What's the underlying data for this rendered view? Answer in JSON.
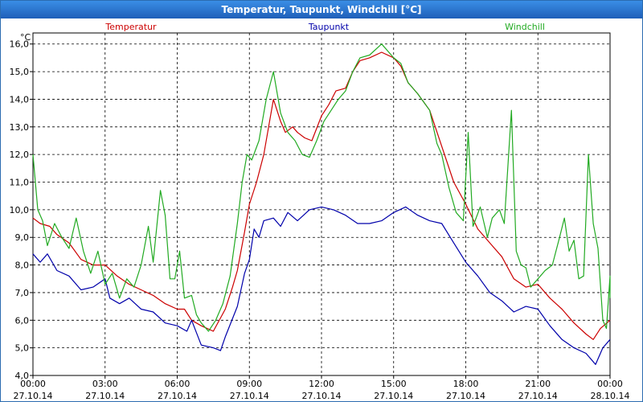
{
  "window": {
    "title": "Temperatur, Taupunkt, Windchill [°C]"
  },
  "chart_data": {
    "type": "line",
    "title": "Temperatur, Taupunkt, Windchill [°C]",
    "ylabel": "°C",
    "ylim": [
      4.0,
      16.4
    ],
    "xlim": [
      0,
      24
    ],
    "grid": true,
    "legend": "top",
    "y_ticks": [
      "4,0",
      "5,0",
      "6,0",
      "7,0",
      "8,0",
      "9,0",
      "10,0",
      "11,0",
      "12,0",
      "13,0",
      "14,0",
      "15,0",
      "16,0"
    ],
    "x_ticks": [
      {
        "time": "00:00",
        "date": "27.10.14"
      },
      {
        "time": "03:00",
        "date": "27.10.14"
      },
      {
        "time": "06:00",
        "date": "27.10.14"
      },
      {
        "time": "09:00",
        "date": "27.10.14"
      },
      {
        "time": "12:00",
        "date": "27.10.14"
      },
      {
        "time": "15:00",
        "date": "27.10.14"
      },
      {
        "time": "18:00",
        "date": "27.10.14"
      },
      {
        "time": "21:00",
        "date": "27.10.14"
      },
      {
        "time": "00:00",
        "date": "28.10.14"
      }
    ],
    "series": [
      {
        "name": "Temperatur",
        "color": "#cc0000",
        "points": [
          [
            0,
            9.7
          ],
          [
            0.3,
            9.5
          ],
          [
            0.7,
            9.4
          ],
          [
            1,
            9.1
          ],
          [
            1.5,
            8.8
          ],
          [
            2,
            8.2
          ],
          [
            2.5,
            8.0
          ],
          [
            3,
            8.0
          ],
          [
            3.5,
            7.6
          ],
          [
            4,
            7.3
          ],
          [
            4.5,
            7.1
          ],
          [
            5,
            6.9
          ],
          [
            5.5,
            6.6
          ],
          [
            6,
            6.4
          ],
          [
            6.3,
            6.4
          ],
          [
            6.6,
            6.0
          ],
          [
            7,
            5.8
          ],
          [
            7.5,
            5.6
          ],
          [
            8,
            6.4
          ],
          [
            8.3,
            7.2
          ],
          [
            8.5,
            7.8
          ],
          [
            8.8,
            9.2
          ],
          [
            9,
            10.2
          ],
          [
            9.3,
            11.0
          ],
          [
            9.6,
            12.0
          ],
          [
            9.8,
            13.0
          ],
          [
            10,
            14.0
          ],
          [
            10.3,
            13.2
          ],
          [
            10.5,
            12.8
          ],
          [
            10.8,
            13.0
          ],
          [
            11,
            12.8
          ],
          [
            11.3,
            12.6
          ],
          [
            11.6,
            12.5
          ],
          [
            12,
            13.4
          ],
          [
            12.3,
            13.8
          ],
          [
            12.6,
            14.3
          ],
          [
            13,
            14.4
          ],
          [
            13.3,
            15.0
          ],
          [
            13.6,
            15.4
          ],
          [
            14,
            15.5
          ],
          [
            14.5,
            15.7
          ],
          [
            15,
            15.5
          ],
          [
            15.3,
            15.2
          ],
          [
            15.6,
            14.6
          ],
          [
            16,
            14.2
          ],
          [
            16.5,
            13.6
          ],
          [
            17,
            12.3
          ],
          [
            17.5,
            11.0
          ],
          [
            18,
            10.2
          ],
          [
            18.5,
            9.3
          ],
          [
            19,
            8.8
          ],
          [
            19.5,
            8.3
          ],
          [
            20,
            7.5
          ],
          [
            20.5,
            7.2
          ],
          [
            21,
            7.3
          ],
          [
            21.5,
            6.8
          ],
          [
            22,
            6.4
          ],
          [
            22.5,
            5.9
          ],
          [
            23,
            5.5
          ],
          [
            23.3,
            5.3
          ],
          [
            23.6,
            5.7
          ],
          [
            24,
            6.0
          ]
        ]
      },
      {
        "name": "Taupunkt",
        "color": "#0000aa",
        "points": [
          [
            0,
            8.4
          ],
          [
            0.3,
            8.1
          ],
          [
            0.6,
            8.4
          ],
          [
            1,
            7.8
          ],
          [
            1.5,
            7.6
          ],
          [
            2,
            7.1
          ],
          [
            2.5,
            7.2
          ],
          [
            3,
            7.5
          ],
          [
            3.2,
            6.8
          ],
          [
            3.6,
            6.6
          ],
          [
            4,
            6.8
          ],
          [
            4.5,
            6.4
          ],
          [
            5,
            6.3
          ],
          [
            5.5,
            5.9
          ],
          [
            6,
            5.8
          ],
          [
            6.4,
            5.6
          ],
          [
            6.6,
            6.0
          ],
          [
            7,
            5.1
          ],
          [
            7.5,
            5.0
          ],
          [
            7.8,
            4.9
          ],
          [
            8,
            5.4
          ],
          [
            8.5,
            6.5
          ],
          [
            8.8,
            7.7
          ],
          [
            9,
            8.2
          ],
          [
            9.2,
            9.3
          ],
          [
            9.4,
            9.0
          ],
          [
            9.6,
            9.6
          ],
          [
            10,
            9.7
          ],
          [
            10.3,
            9.4
          ],
          [
            10.6,
            9.9
          ],
          [
            11,
            9.6
          ],
          [
            11.5,
            10.0
          ],
          [
            12,
            10.1
          ],
          [
            12.5,
            10.0
          ],
          [
            13,
            9.8
          ],
          [
            13.5,
            9.5
          ],
          [
            14,
            9.5
          ],
          [
            14.5,
            9.6
          ],
          [
            15,
            9.9
          ],
          [
            15.5,
            10.1
          ],
          [
            16,
            9.8
          ],
          [
            16.5,
            9.6
          ],
          [
            17,
            9.5
          ],
          [
            17.5,
            8.8
          ],
          [
            18,
            8.1
          ],
          [
            18.5,
            7.6
          ],
          [
            19,
            7.0
          ],
          [
            19.5,
            6.7
          ],
          [
            20,
            6.3
          ],
          [
            20.5,
            6.5
          ],
          [
            21,
            6.4
          ],
          [
            21.5,
            5.8
          ],
          [
            22,
            5.3
          ],
          [
            22.5,
            5.0
          ],
          [
            23,
            4.8
          ],
          [
            23.4,
            4.4
          ],
          [
            23.7,
            5.0
          ],
          [
            24,
            5.3
          ]
        ]
      },
      {
        "name": "Windchill",
        "color": "#22aa22",
        "points": [
          [
            0,
            12.0
          ],
          [
            0.2,
            10.0
          ],
          [
            0.4,
            9.6
          ],
          [
            0.6,
            8.7
          ],
          [
            0.9,
            9.5
          ],
          [
            1.2,
            9.0
          ],
          [
            1.5,
            8.6
          ],
          [
            1.8,
            9.7
          ],
          [
            2.1,
            8.5
          ],
          [
            2.4,
            7.7
          ],
          [
            2.7,
            8.5
          ],
          [
            3,
            7.3
          ],
          [
            3.3,
            7.7
          ],
          [
            3.6,
            6.8
          ],
          [
            3.9,
            7.5
          ],
          [
            4.2,
            7.2
          ],
          [
            4.5,
            8.0
          ],
          [
            4.8,
            9.4
          ],
          [
            5,
            8.1
          ],
          [
            5.3,
            10.7
          ],
          [
            5.5,
            9.8
          ],
          [
            5.7,
            7.5
          ],
          [
            5.9,
            7.5
          ],
          [
            6.1,
            8.5
          ],
          [
            6.3,
            6.8
          ],
          [
            6.6,
            6.9
          ],
          [
            6.8,
            6.2
          ],
          [
            7,
            5.9
          ],
          [
            7.3,
            5.6
          ],
          [
            7.6,
            6.0
          ],
          [
            7.9,
            6.6
          ],
          [
            8.2,
            7.6
          ],
          [
            8.5,
            9.5
          ],
          [
            8.7,
            11.0
          ],
          [
            8.9,
            12.0
          ],
          [
            9.1,
            11.8
          ],
          [
            9.4,
            12.5
          ],
          [
            9.7,
            14.0
          ],
          [
            10,
            15.0
          ],
          [
            10.3,
            13.5
          ],
          [
            10.6,
            12.8
          ],
          [
            10.9,
            12.5
          ],
          [
            11.2,
            12.0
          ],
          [
            11.5,
            11.9
          ],
          [
            11.8,
            12.5
          ],
          [
            12.1,
            13.2
          ],
          [
            12.4,
            13.6
          ],
          [
            12.7,
            14.0
          ],
          [
            13,
            14.3
          ],
          [
            13.3,
            15.0
          ],
          [
            13.6,
            15.5
          ],
          [
            14,
            15.6
          ],
          [
            14.5,
            16.0
          ],
          [
            15,
            15.5
          ],
          [
            15.3,
            15.3
          ],
          [
            15.6,
            14.6
          ],
          [
            16,
            14.2
          ],
          [
            16.5,
            13.6
          ],
          [
            16.8,
            12.4
          ],
          [
            17,
            12.0
          ],
          [
            17.3,
            10.8
          ],
          [
            17.6,
            9.9
          ],
          [
            17.9,
            9.6
          ],
          [
            18.1,
            12.8
          ],
          [
            18.3,
            9.4
          ],
          [
            18.6,
            10.1
          ],
          [
            18.9,
            9.0
          ],
          [
            19.1,
            9.7
          ],
          [
            19.4,
            10.0
          ],
          [
            19.6,
            9.5
          ],
          [
            19.9,
            13.6
          ],
          [
            20.1,
            8.5
          ],
          [
            20.3,
            8.0
          ],
          [
            20.5,
            7.9
          ],
          [
            20.7,
            7.2
          ],
          [
            21,
            7.5
          ],
          [
            21.3,
            7.8
          ],
          [
            21.6,
            8.0
          ],
          [
            21.9,
            9.0
          ],
          [
            22.1,
            9.7
          ],
          [
            22.3,
            8.5
          ],
          [
            22.5,
            8.9
          ],
          [
            22.7,
            7.5
          ],
          [
            22.9,
            7.6
          ],
          [
            23.1,
            12.0
          ],
          [
            23.3,
            9.5
          ],
          [
            23.5,
            8.6
          ],
          [
            23.7,
            6.0
          ],
          [
            23.85,
            5.7
          ],
          [
            24,
            7.6
          ],
          [
            24.2,
            6.8
          ]
        ]
      }
    ]
  }
}
